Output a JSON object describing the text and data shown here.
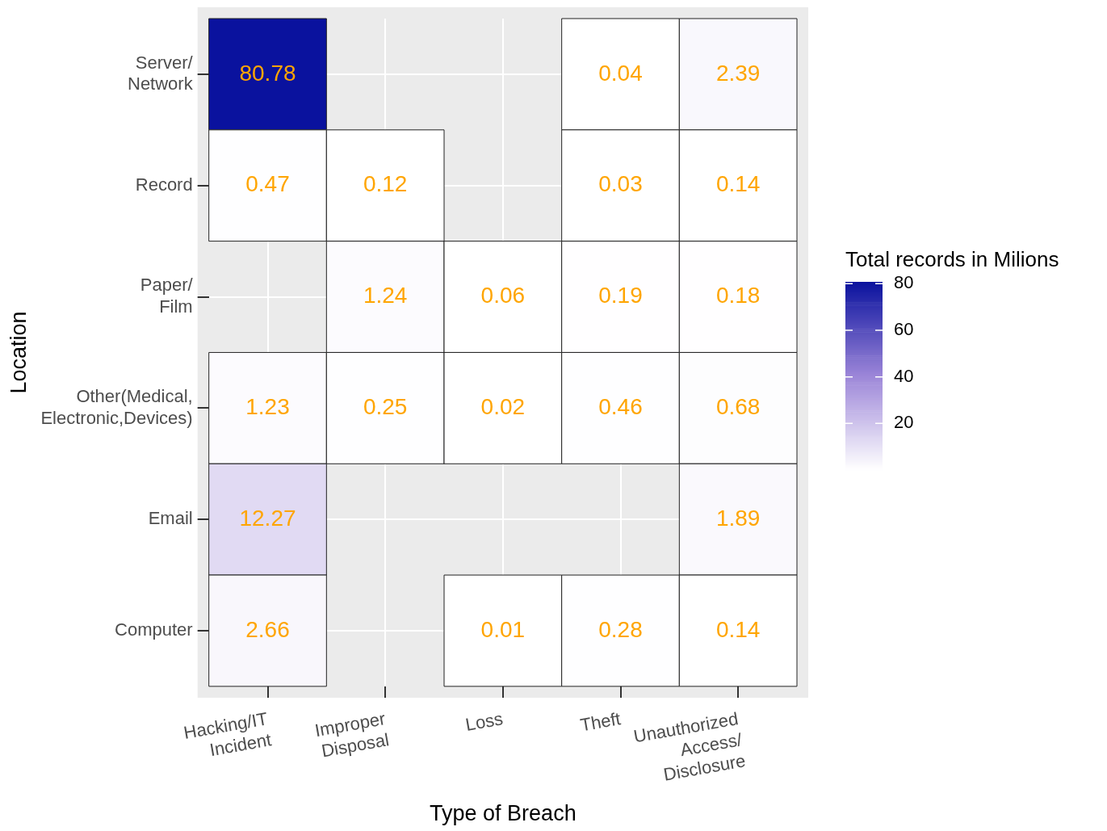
{
  "chart_data": {
    "type": "heatmap",
    "xlabel": "Type of Breach",
    "ylabel": "Location",
    "legend_title": "Total records in Milions",
    "categories": [
      "Hacking/IT\nIncident",
      "Improper\nDisposal",
      "Loss",
      "Theft",
      "Unauthorized\nAccess/\nDisclosure"
    ],
    "y_categories": [
      "Server/\nNetwork",
      "Record",
      "Paper/\nFilm",
      "Other(Medical,\nElectronic,Devices)",
      "Email",
      "Computer"
    ],
    "cells": [
      [
        80.78,
        null,
        null,
        0.04,
        2.39
      ],
      [
        0.47,
        0.12,
        null,
        0.03,
        0.14
      ],
      [
        null,
        1.24,
        0.06,
        0.19,
        0.18
      ],
      [
        1.23,
        0.25,
        0.02,
        0.46,
        0.68
      ],
      [
        12.27,
        null,
        null,
        null,
        1.89
      ],
      [
        2.66,
        null,
        0.01,
        0.28,
        0.14
      ]
    ],
    "clim": [
      0.01,
      80.78
    ],
    "cticks": [
      20,
      40,
      60,
      80
    ],
    "data_labels": true,
    "grid": true
  }
}
